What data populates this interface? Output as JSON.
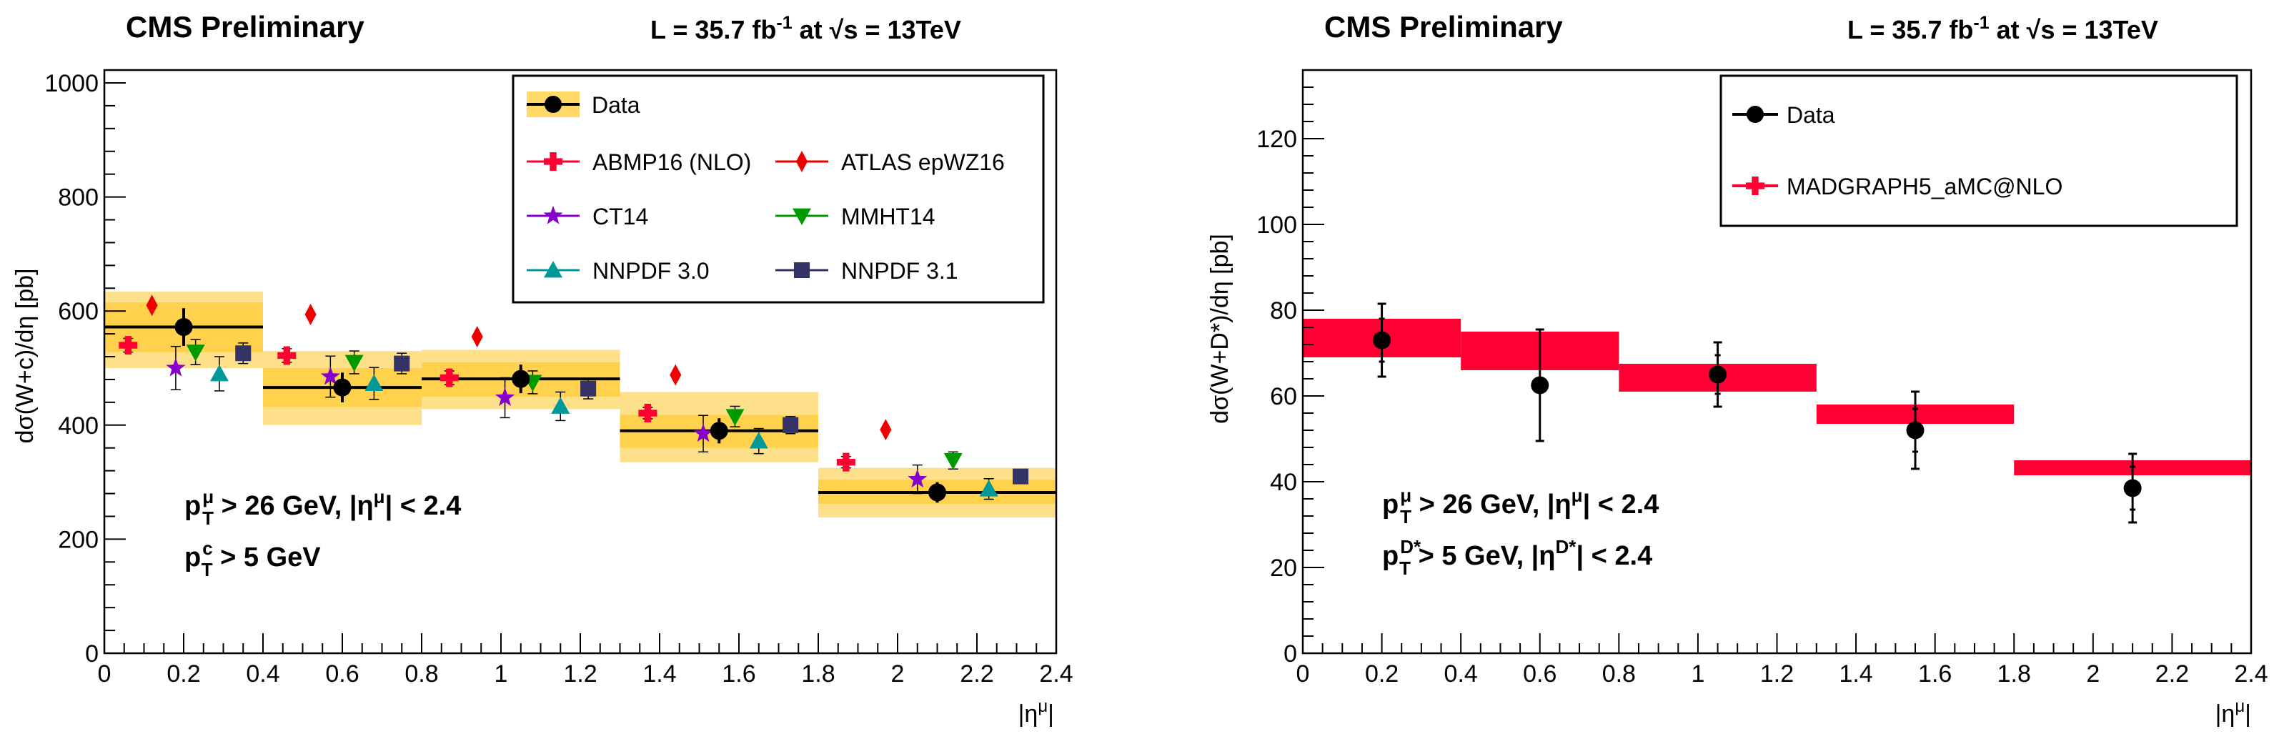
{
  "chart_data": [
    {
      "type": "scatter",
      "title": "CMS Preliminary",
      "luminosity_label": {
        "prefix": "L = 35.7 fb",
        "sup": "-1",
        "middle": " at ",
        "sqrt": "√",
        "energy": "s = 13TeV"
      },
      "ylabel": "dσ(W+c)/dη  [pb]",
      "xlabel": "|η",
      "xlabel_sup": "μ",
      "xlabel_end": "|",
      "xlim": [
        0,
        2.4
      ],
      "ylim": [
        0,
        1000
      ],
      "x_tick_labels": [
        "0",
        "0.2",
        "0.4",
        "0.6",
        "0.8",
        "1",
        "1.2",
        "1.4",
        "1.6",
        "1.8",
        "2",
        "2.2",
        "2.4"
      ],
      "y_tick_labels": [
        "0",
        "200",
        "400",
        "600",
        "800",
        "1000"
      ],
      "cuts": [
        {
          "p": "p",
          "sub": "T",
          "sup": "μ",
          "rest": " > 26 GeV, |η",
          "sup2": "μ",
          "end": "| < 2.4"
        },
        {
          "p": "p",
          "sub": "T",
          "sup": "c",
          "rest": " > 5 GeV",
          "sup2": "",
          "end": ""
        }
      ],
      "bins": [
        {
          "x_low": 0.0,
          "x_high": 0.4,
          "x_center": 0.2,
          "value": 572,
          "stat_err": 33,
          "syst_low": 528,
          "syst_high": 615,
          "total_low": 500,
          "total_high": 634
        },
        {
          "x_low": 0.4,
          "x_high": 0.8,
          "x_center": 0.6,
          "value": 466,
          "stat_err": 26,
          "syst_low": 432,
          "syst_high": 500,
          "total_low": 400,
          "total_high": 530
        },
        {
          "x_low": 0.8,
          "x_high": 1.3,
          "x_center": 1.05,
          "value": 481,
          "stat_err": 25,
          "syst_low": 450,
          "syst_high": 510,
          "total_low": 428,
          "total_high": 532
        },
        {
          "x_low": 1.3,
          "x_high": 1.8,
          "x_center": 1.55,
          "value": 390,
          "stat_err": 22,
          "syst_low": 360,
          "syst_high": 418,
          "total_low": 335,
          "total_high": 458
        },
        {
          "x_low": 1.8,
          "x_high": 2.4,
          "x_center": 2.1,
          "value": 282,
          "stat_err": 18,
          "syst_low": 262,
          "syst_high": 304,
          "total_low": 238,
          "total_high": 325
        }
      ],
      "series": [
        {
          "name": "ABMP16 (NLO)",
          "marker": "cross",
          "color": "#ff0033",
          "x": [
            0.06,
            0.46,
            0.87,
            1.37,
            1.87
          ],
          "values": [
            540,
            522,
            483,
            421,
            335
          ],
          "err": [
            12,
            12,
            12,
            10,
            10
          ]
        },
        {
          "name": "ATLAS epWZ16",
          "marker": "diamond",
          "color": "#ee0000",
          "x": [
            0.12,
            0.52,
            0.94,
            1.44,
            1.97
          ],
          "values": [
            610,
            594,
            555,
            488,
            392
          ],
          "err": [
            0,
            0,
            0,
            0,
            0
          ]
        },
        {
          "name": "CT14",
          "marker": "star",
          "color": "#8800cc",
          "x": [
            0.18,
            0.57,
            1.01,
            1.51,
            2.05
          ],
          "values": [
            500,
            485,
            448,
            385,
            305
          ],
          "err": [
            38,
            36,
            35,
            32,
            25
          ]
        },
        {
          "name": "MMHT14",
          "marker": "triangle-down",
          "color": "#009900",
          "x": [
            0.23,
            0.63,
            1.08,
            1.59,
            2.14
          ],
          "values": [
            528,
            510,
            475,
            415,
            338
          ],
          "err": [
            22,
            20,
            20,
            18,
            15
          ]
        },
        {
          "name": "NNPDF 3.0",
          "marker": "triangle-up",
          "color": "#009999",
          "x": [
            0.29,
            0.68,
            1.15,
            1.65,
            2.23
          ],
          "values": [
            490,
            473,
            433,
            372,
            288
          ],
          "err": [
            30,
            28,
            25,
            22,
            18
          ]
        },
        {
          "name": "NNPDF 3.1",
          "marker": "square",
          "color": "#333366",
          "x": [
            0.35,
            0.75,
            1.22,
            1.73,
            2.31
          ],
          "values": [
            526,
            508,
            464,
            400,
            310
          ],
          "err": [
            18,
            18,
            18,
            15,
            12
          ]
        }
      ],
      "legend": {
        "data_label": "Data",
        "position": "top-right"
      }
    },
    {
      "type": "scatter",
      "title": "CMS Preliminary",
      "luminosity_label": {
        "prefix": "L = 35.7 fb",
        "sup": "-1",
        "middle": " at ",
        "sqrt": "√",
        "energy": "s = 13TeV"
      },
      "ylabel": "dσ(W+D*)/dη  [pb]",
      "xlabel": "|η",
      "xlabel_sup": "μ",
      "xlabel_end": "|",
      "xlim": [
        0,
        2.4
      ],
      "ylim": [
        0,
        136
      ],
      "x_tick_labels": [
        "0",
        "0.2",
        "0.4",
        "0.6",
        "0.8",
        "1",
        "1.2",
        "1.4",
        "1.6",
        "1.8",
        "2",
        "2.2",
        "2.4"
      ],
      "y_tick_labels": [
        "0",
        "20",
        "40",
        "60",
        "80",
        "100",
        "120"
      ],
      "cuts": [
        {
          "p": "p",
          "sub": "T",
          "sup": "μ",
          "rest": " > 26 GeV, |η",
          "sup2": "μ",
          "end": "| < 2.4"
        },
        {
          "p": "p",
          "sub": "T",
          "sup": "D*",
          "rest": " > 5 GeV,  |η",
          "sup2": "D*",
          "end": "| < 2.4"
        }
      ],
      "data": {
        "x": [
          0.2,
          0.6,
          1.05,
          1.55,
          2.1
        ],
        "values": [
          73,
          62.5,
          65,
          52,
          38.5
        ],
        "stat_err": [
          5,
          13,
          4.5,
          5,
          5
        ],
        "total_err": [
          8.5,
          13,
          7.5,
          9,
          8
        ]
      },
      "prediction": {
        "name": "MADGRAPH5_aMC@NLO",
        "color": "#ff0033",
        "bins": [
          {
            "x_low": 0.0,
            "x_high": 0.4,
            "low": 69,
            "high": 78
          },
          {
            "x_low": 0.4,
            "x_high": 0.8,
            "low": 66,
            "high": 75
          },
          {
            "x_low": 0.8,
            "x_high": 1.3,
            "low": 61,
            "high": 67.5
          },
          {
            "x_low": 1.3,
            "x_high": 1.8,
            "low": 53.5,
            "high": 58
          },
          {
            "x_low": 1.8,
            "x_high": 2.4,
            "low": 41.5,
            "high": 45
          }
        ]
      },
      "legend": {
        "data_label": "Data",
        "position": "top-right"
      }
    }
  ]
}
